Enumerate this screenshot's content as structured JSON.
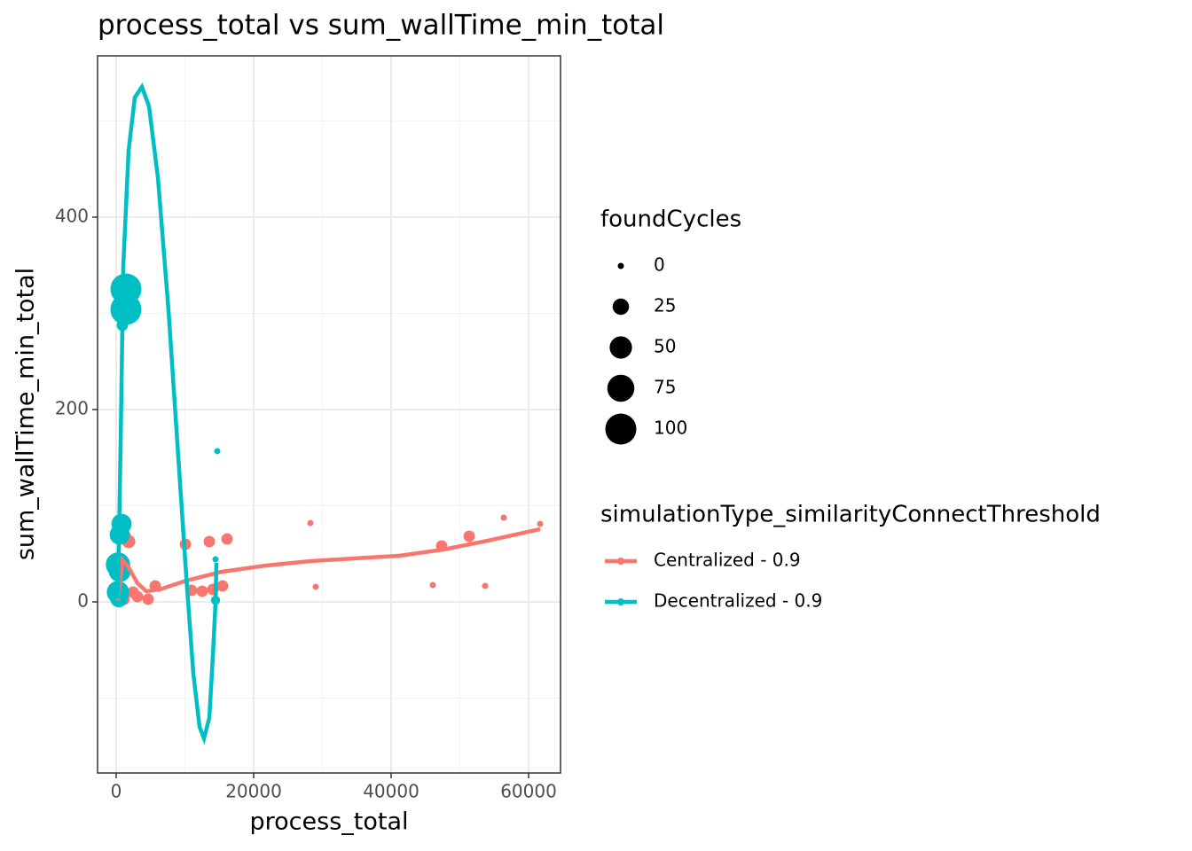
{
  "chart_data": {
    "type": "scatter",
    "title": "process_total  vs  sum_wallTime_min_total",
    "x_label": "process_total",
    "y_label": "sum_wallTime_min_total",
    "xlim": [
      -2710,
      64645
    ],
    "ylim": [
      -177.9,
      567.7
    ],
    "xticks": [
      0,
      20000,
      40000,
      60000
    ],
    "yticks": [
      0,
      200,
      400
    ],
    "xminorticks": [
      10000,
      30000,
      50000
    ],
    "yminorticks": [
      -100,
      100,
      300,
      500
    ],
    "grid": true,
    "size_legend": {
      "title": "foundCycles",
      "values": [
        0,
        25,
        50,
        75,
        100
      ]
    },
    "color_legend_title": "simulationType_similarityConnectThreshold",
    "series": [
      {
        "name": "Centralized - 0.9",
        "color": "#F8766D",
        "x": [
          61677,
          56387,
          51355,
          47355,
          46065,
          53677,
          28258,
          29032,
          16129,
          13548,
          10065,
          15484,
          10968,
          12516,
          14065,
          5677,
          4645,
          1806,
          1161,
          2452,
          3097,
          1161
        ],
        "y": [
          81.1,
          87.5,
          68.2,
          58.1,
          17.5,
          16.6,
          82.0,
          15.7,
          65.4,
          62.7,
          59.9,
          16.6,
          12.0,
          11.1,
          12.9,
          16.6,
          2.8,
          62.7,
          68.2,
          10.1,
          5.5,
          2.8
        ],
        "size": [
          0,
          0,
          10,
          10,
          0,
          0,
          0,
          0,
          10,
          10,
          10,
          10,
          10,
          10,
          10,
          10,
          10,
          15,
          15,
          10,
          10,
          10
        ],
        "smooth_x": [
          258,
          903,
          1806,
          3097,
          4387,
          6323,
          10194,
          15355,
          21806,
          28258,
          34710,
          41161,
          47613,
          54065,
          61677
        ],
        "smooth_y": [
          0.9,
          43.3,
          35.9,
          19.4,
          11.1,
          12.9,
          22.1,
          31.3,
          37.8,
          42.4,
          45.2,
          47.9,
          54.4,
          63.6,
          75.6
        ]
      },
      {
        "name": "Decentralized - 0.9",
        "color": "#00BFC4",
        "x": [
          1419,
          1419,
          903,
          774,
          516,
          258,
          516,
          258,
          387,
          14710,
          14452,
          14452
        ],
        "y": [
          325.3,
          304.1,
          287.6,
          81.1,
          70.0,
          38.7,
          32.3,
          10.1,
          3.7,
          156.7,
          44.2,
          1.8
        ],
        "size": [
          100,
          100,
          10,
          40,
          40,
          60,
          50,
          50,
          30,
          0,
          0,
          5
        ],
        "smooth_x": [
          258,
          645,
          1032,
          1806,
          2710,
          3742,
          4774,
          6065,
          7613,
          8903,
          10194,
          11226,
          12129,
          12774,
          13548,
          14065,
          14452,
          14581
        ],
        "smooth_y": [
          3.7,
          165.0,
          349.3,
          469.1,
          524.4,
          535.5,
          515.2,
          441.5,
          303.2,
          165.0,
          26.7,
          -74.7,
          -130.0,
          -141.9,
          -120.7,
          -56.2,
          -0.9,
          40.6
        ]
      }
    ]
  }
}
